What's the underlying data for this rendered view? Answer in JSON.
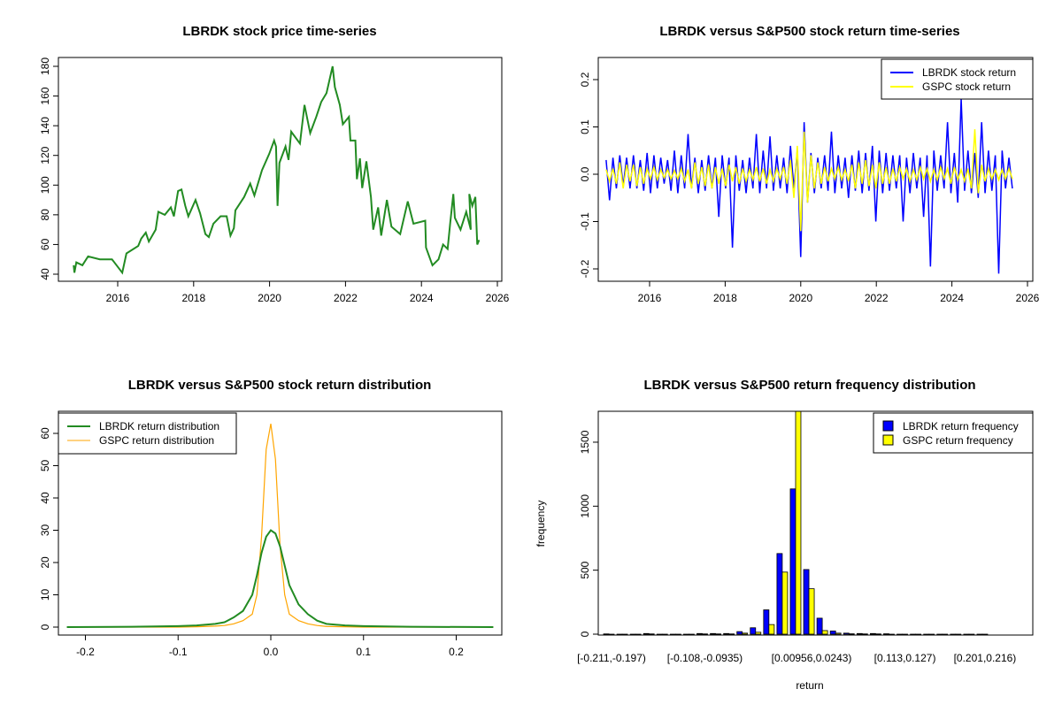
{
  "chart_data": [
    {
      "type": "line",
      "title": "LBRDK stock price time-series",
      "xlabel": "",
      "ylabel": "",
      "xlim": [
        2014.6,
        2026.1
      ],
      "ylim": [
        40,
        180
      ],
      "xticks": [
        2016,
        2018,
        2020,
        2022,
        2024,
        2026
      ],
      "yticks": [
        40,
        60,
        80,
        100,
        120,
        140,
        160,
        180
      ],
      "color": "#228B22",
      "x": [
        2014.84,
        2014.86,
        2014.91,
        2015.07,
        2015.22,
        2015.53,
        2015.85,
        2016.12,
        2016.23,
        2016.54,
        2016.62,
        2016.74,
        2016.82,
        2017.0,
        2017.07,
        2017.24,
        2017.4,
        2017.48,
        2017.59,
        2017.68,
        2017.78,
        2017.86,
        2018.05,
        2018.17,
        2018.31,
        2018.4,
        2018.52,
        2018.71,
        2018.87,
        2018.97,
        2019.06,
        2019.1,
        2019.33,
        2019.49,
        2019.6,
        2019.8,
        2019.99,
        2020.12,
        2020.17,
        2020.21,
        2020.26,
        2020.42,
        2020.5,
        2020.57,
        2020.8,
        2020.92,
        2021.07,
        2021.23,
        2021.36,
        2021.5,
        2021.66,
        2021.72,
        2021.85,
        2021.93,
        2022.09,
        2022.13,
        2022.26,
        2022.3,
        2022.38,
        2022.44,
        2022.55,
        2022.67,
        2022.73,
        2022.86,
        2022.94,
        2023.09,
        2023.21,
        2023.44,
        2023.64,
        2023.79,
        2024.1,
        2024.12,
        2024.29,
        2024.45,
        2024.57,
        2024.69,
        2024.76,
        2024.84,
        2024.88,
        2025.03,
        2025.18,
        2025.3,
        2025.26,
        2025.34,
        2025.42,
        2025.47,
        2025.52
      ],
      "y": [
        46,
        41,
        48,
        46,
        52,
        50,
        50,
        41,
        54,
        59,
        64,
        68,
        62,
        70,
        82,
        80,
        85,
        79,
        96,
        97,
        86,
        79,
        90,
        81,
        67,
        65,
        74,
        79,
        79,
        66,
        71,
        83,
        92,
        101,
        93,
        110,
        121,
        130,
        126,
        86,
        115,
        126,
        117,
        136,
        128,
        154,
        135,
        146,
        156,
        162,
        180,
        166,
        154,
        141,
        146,
        130,
        130,
        104,
        118,
        98,
        116,
        92,
        70,
        85,
        66,
        90,
        72,
        67,
        89,
        74,
        76,
        58,
        46,
        50,
        60,
        57,
        75,
        94,
        78,
        70,
        82,
        70,
        94,
        86,
        92,
        60,
        63
      ]
    },
    {
      "type": "line",
      "title": "LBRDK versus S&P500 stock return time-series",
      "xlim": [
        2014.6,
        2026.1
      ],
      "ylim": [
        -0.22,
        0.24
      ],
      "xticks": [
        2016,
        2018,
        2020,
        2022,
        2024,
        2026
      ],
      "yticks": [
        -0.2,
        -0.1,
        0.0,
        0.1,
        0.2
      ],
      "legend": "top-right",
      "x_start": 2014.85,
      "x_end": 2025.6,
      "series": [
        {
          "name": "LBRDK stock return",
          "color": "#0000FF",
          "values": [
            0.03,
            -0.055,
            0.035,
            -0.03,
            0.04,
            -0.025,
            0.035,
            -0.03,
            0.04,
            -0.03,
            0.03,
            -0.035,
            0.045,
            -0.04,
            0.04,
            -0.03,
            0.035,
            -0.02,
            0.03,
            -0.035,
            0.05,
            -0.04,
            0.04,
            -0.03,
            0.085,
            -0.03,
            0.035,
            -0.04,
            0.03,
            -0.035,
            0.04,
            -0.03,
            0.035,
            -0.09,
            0.04,
            -0.03,
            0.035,
            -0.155,
            0.04,
            -0.035,
            0.03,
            -0.04,
            0.035,
            -0.03,
            0.085,
            -0.04,
            0.05,
            -0.03,
            0.08,
            -0.035,
            0.04,
            -0.03,
            0.035,
            -0.04,
            0.06,
            -0.03,
            0.05,
            -0.175,
            0.11,
            -0.06,
            0.045,
            -0.04,
            0.035,
            -0.03,
            0.04,
            -0.035,
            0.09,
            -0.04,
            0.04,
            -0.03,
            0.035,
            -0.05,
            0.04,
            -0.035,
            0.05,
            -0.04,
            0.045,
            -0.035,
            0.06,
            -0.1,
            0.05,
            -0.04,
            0.045,
            -0.035,
            0.04,
            -0.03,
            0.04,
            -0.1,
            0.035,
            -0.04,
            0.045,
            -0.03,
            0.035,
            -0.09,
            0.04,
            -0.195,
            0.05,
            -0.035,
            0.04,
            -0.03,
            0.11,
            -0.04,
            0.045,
            -0.06,
            0.16,
            -0.035,
            0.05,
            -0.04,
            0.045,
            -0.05,
            0.11,
            -0.04,
            0.05,
            -0.035,
            0.04,
            -0.21,
            0.05,
            -0.03,
            0.035,
            -0.03
          ]
        },
        {
          "name": "GSPC stock return",
          "color": "#FFFF00",
          "values": [
            0.01,
            -0.015,
            0.012,
            -0.02,
            0.025,
            -0.03,
            0.02,
            -0.015,
            0.02,
            -0.025,
            0.015,
            -0.02,
            0.012,
            -0.01,
            0.015,
            -0.012,
            0.01,
            -0.008,
            0.01,
            -0.01,
            0.008,
            -0.01,
            0.012,
            -0.015,
            0.01,
            -0.03,
            0.025,
            -0.02,
            0.015,
            -0.025,
            0.02,
            -0.03,
            0.015,
            -0.02,
            0.012,
            -0.025,
            0.02,
            -0.015,
            0.015,
            -0.02,
            0.012,
            -0.015,
            0.01,
            -0.012,
            0.015,
            -0.015,
            0.012,
            -0.02,
            0.01,
            -0.015,
            0.012,
            -0.01,
            0.015,
            -0.02,
            0.03,
            -0.05,
            0.06,
            -0.12,
            0.09,
            -0.06,
            0.04,
            -0.03,
            0.025,
            -0.02,
            0.015,
            -0.015,
            0.012,
            -0.01,
            0.015,
            -0.012,
            0.01,
            -0.015,
            0.02,
            -0.03,
            0.025,
            -0.02,
            0.03,
            -0.025,
            0.02,
            -0.03,
            0.025,
            -0.02,
            0.015,
            -0.02,
            0.012,
            -0.015,
            0.015,
            -0.01,
            0.012,
            -0.015,
            0.01,
            -0.012,
            0.015,
            -0.01,
            0.012,
            -0.015,
            0.01,
            -0.012,
            0.015,
            -0.01,
            0.012,
            -0.02,
            0.015,
            -0.012,
            0.01,
            -0.015,
            0.012,
            -0.03,
            0.095,
            -0.04,
            0.02,
            -0.015,
            0.012,
            -0.01,
            0.01,
            -0.012,
            0.01,
            -0.01,
            0.012,
            -0.01
          ]
        }
      ]
    },
    {
      "type": "line",
      "title": "LBRDK versus S&P500 stock return distribution",
      "xlim": [
        -0.22,
        0.24
      ],
      "ylim": [
        0,
        63
      ],
      "xticks": [
        -0.2,
        -0.1,
        0.0,
        0.1,
        0.2
      ],
      "yticks": [
        0,
        10,
        20,
        30,
        40,
        50,
        60
      ],
      "legend": "top-left",
      "x": [
        -0.22,
        -0.15,
        -0.1,
        -0.08,
        -0.06,
        -0.05,
        -0.04,
        -0.03,
        -0.02,
        -0.015,
        -0.01,
        -0.005,
        0,
        0.005,
        0.01,
        0.015,
        0.02,
        0.03,
        0.04,
        0.05,
        0.06,
        0.08,
        0.1,
        0.15,
        0.24
      ],
      "series": [
        {
          "name": "LBRDK return distribution",
          "color": "#228B22",
          "values": [
            0,
            0.1,
            0.3,
            0.5,
            1,
            1.5,
            3,
            5,
            10,
            16,
            23,
            28,
            30,
            29,
            25,
            19,
            13,
            7,
            4,
            2,
            1,
            0.5,
            0.3,
            0.1,
            0
          ]
        },
        {
          "name": "GSPC return distribution",
          "color": "#FFA500",
          "values": [
            0,
            0,
            0,
            0.1,
            0.3,
            0.5,
            1,
            2,
            4,
            10,
            28,
            55,
            63,
            52,
            25,
            10,
            4,
            2,
            1,
            0.5,
            0.2,
            0.1,
            0,
            0,
            0
          ]
        }
      ]
    },
    {
      "type": "bar",
      "title": "LBRDK versus S&P500 return frequency distribution",
      "xlabel": "return",
      "ylabel": "frequency",
      "ylim": [
        0,
        1741
      ],
      "yticks": [
        0,
        500,
        1000,
        1500
      ],
      "legend": "top-right",
      "bin_count": 29,
      "shown_labels": [
        {
          "bin": 0,
          "label": "[-0.211,-0.197)"
        },
        {
          "bin": 7,
          "label": "[-0.108,-0.0935)"
        },
        {
          "bin": 15,
          "label": "[0.00956,0.0243)"
        },
        {
          "bin": 22,
          "label": "[0.113,0.127)"
        },
        {
          "bin": 28,
          "label": "[0.201,0.216)"
        }
      ],
      "series": [
        {
          "name": "LBRDK return frequency",
          "color": "#0000FF",
          "values": [
            2,
            0,
            0,
            5,
            0,
            0,
            0,
            5,
            5,
            5,
            20,
            50,
            190,
            630,
            1135,
            505,
            125,
            25,
            8,
            5,
            5,
            3,
            0,
            0,
            0,
            0,
            0,
            0,
            0
          ]
        },
        {
          "name": "GSPC return frequency",
          "color": "#FFFF00",
          "values": [
            0,
            0,
            0,
            2,
            0,
            0,
            0,
            2,
            2,
            2,
            8,
            15,
            75,
            485,
            1750,
            355,
            28,
            8,
            3,
            2,
            2,
            0,
            0,
            0,
            0,
            0,
            0,
            0,
            0
          ]
        }
      ]
    }
  ]
}
